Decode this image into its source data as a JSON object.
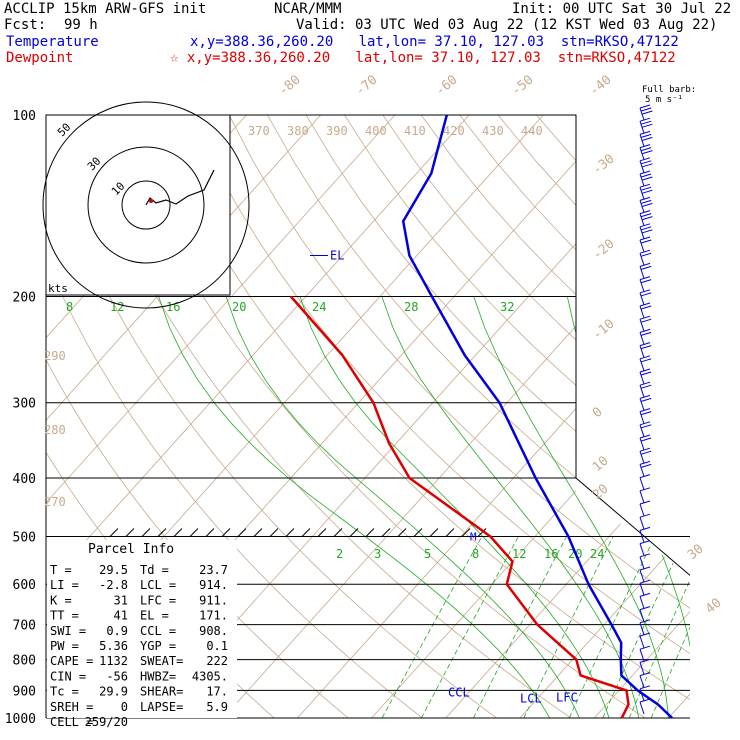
{
  "header": {
    "model": "ACCLIP 15km ARW-GFS init",
    "org": "NCAR/MMM",
    "init": "Init: 00 UTC Sat 30 Jul 22",
    "fcst_label": "Fcst:",
    "fcst_value": "99 h",
    "valid": "Valid: 03 UTC Wed 03 Aug 22 (12 KST Wed 03 Aug 22)",
    "temperature_label": "Temperature",
    "temperature_info": "x,y=388.36,260.20   lat,lon= 37.10, 127.03  stn=RKSO,47122",
    "dewpoint_label": "Dewpoint",
    "dewpoint_info": "☆ x,y=388.36,260.20   lat,lon= 37.10, 127.03  stn=RKSO,47122",
    "full_barb": "Full barb:",
    "barb_unit": "5 m s⁻¹"
  },
  "colors": {
    "temperature": "#0000dd",
    "dewpoint": "#dd0000",
    "dry_adiabat": "#c8aa8c",
    "mixing_ratio": "#22aa22",
    "theta_e": "#22aa22",
    "isobar": "#000000"
  },
  "chart_data": {
    "type": "skew-t",
    "pressure_axis": {
      "ticks": [
        100,
        200,
        300,
        400,
        500,
        600,
        700,
        800,
        900,
        1000
      ],
      "units": "hPa",
      "log_scale": true
    },
    "temperature_lines_labels": [
      -80,
      -70,
      -60,
      -50,
      -40,
      -30,
      -20,
      -10,
      0,
      10,
      20,
      30,
      40
    ],
    "theta_labels_top": [
      370,
      380,
      390,
      400,
      410,
      420,
      430,
      440
    ],
    "theta_labels_left": [
      290,
      280,
      270
    ],
    "theta_e_labels": [
      8,
      12,
      16,
      20,
      24,
      28,
      32
    ],
    "mixing_ratio_labels": [
      2,
      3,
      5,
      8,
      12,
      16,
      20,
      24
    ],
    "temperature_profile": [
      {
        "p": 1000,
        "t": 30.5
      },
      {
        "p": 950,
        "t": 27.0
      },
      {
        "p": 900,
        "t": 22.5
      },
      {
        "p": 850,
        "t": 18.5
      },
      {
        "p": 800,
        "t": 16.5
      },
      {
        "p": 750,
        "t": 14.5
      },
      {
        "p": 700,
        "t": 11.0
      },
      {
        "p": 600,
        "t": 3.0
      },
      {
        "p": 500,
        "t": -5.5
      },
      {
        "p": 400,
        "t": -17.0
      },
      {
        "p": 300,
        "t": -31.0
      },
      {
        "p": 250,
        "t": -41.5
      },
      {
        "p": 200,
        "t": -53.0
      },
      {
        "p": 171,
        "t": -61.0
      },
      {
        "p": 150,
        "t": -66.0
      },
      {
        "p": 125,
        "t": -68.0
      },
      {
        "p": 100,
        "t": -73.0
      }
    ],
    "dewpoint_profile": [
      {
        "p": 1000,
        "t": 23.7
      },
      {
        "p": 950,
        "t": 23.0
      },
      {
        "p": 900,
        "t": 21.0
      },
      {
        "p": 850,
        "t": 13.0
      },
      {
        "p": 800,
        "t": 10.5
      },
      {
        "p": 700,
        "t": 1.0
      },
      {
        "p": 600,
        "t": -8.0
      },
      {
        "p": 550,
        "t": -10.0
      },
      {
        "p": 500,
        "t": -16.0
      },
      {
        "p": 400,
        "t": -34.0
      },
      {
        "p": 350,
        "t": -41.0
      },
      {
        "p": 300,
        "t": -48.0
      },
      {
        "p": 250,
        "t": -58.0
      },
      {
        "p": 200,
        "t": -72.0
      }
    ],
    "level_labels": [
      {
        "label": "EL",
        "p": 171
      },
      {
        "label": "M",
        "p": 500
      },
      {
        "label": "CCL",
        "p": 908
      },
      {
        "label": "LCL",
        "p": 914
      },
      {
        "label": "LFC",
        "p": 911
      }
    ],
    "hodograph_ring_labels": [
      "50",
      "30",
      "10"
    ],
    "hodograph_units": "kts"
  },
  "parcel_info": {
    "title": "Parcel Info",
    "rows": [
      {
        "a": "T  =",
        "av": "29.5",
        "b": "Td =",
        "bv": "23.7"
      },
      {
        "a": "LI =",
        "av": "-2.8",
        "b": "LCL =",
        "bv": "914."
      },
      {
        "a": "K  =",
        "av": "31",
        "b": "LFC =",
        "bv": "911."
      },
      {
        "a": "TT =",
        "av": "41",
        "b": "EL =",
        "bv": "171."
      },
      {
        "a": "SWI =",
        "av": "0.9",
        "b": "CCL =",
        "bv": "908."
      },
      {
        "a": "PW =",
        "av": "5.36",
        "b": "YGP =",
        "bv": "0.1"
      },
      {
        "a": "CAPE =",
        "av": "1132",
        "b": "SWEAT=",
        "bv": "222"
      },
      {
        "a": "CIN =",
        "av": "-56",
        "b": "HWBZ=",
        "bv": "4305."
      },
      {
        "a": "Tc =",
        "av": "29.9",
        "b": "SHEAR=",
        "bv": "17."
      },
      {
        "a": "SREH =",
        "av": "0",
        "b": "LAPSE=",
        "bv": "5.9"
      },
      {
        "a": "CELL =",
        "av": "259/20",
        "b": "",
        "bv": ""
      }
    ]
  }
}
